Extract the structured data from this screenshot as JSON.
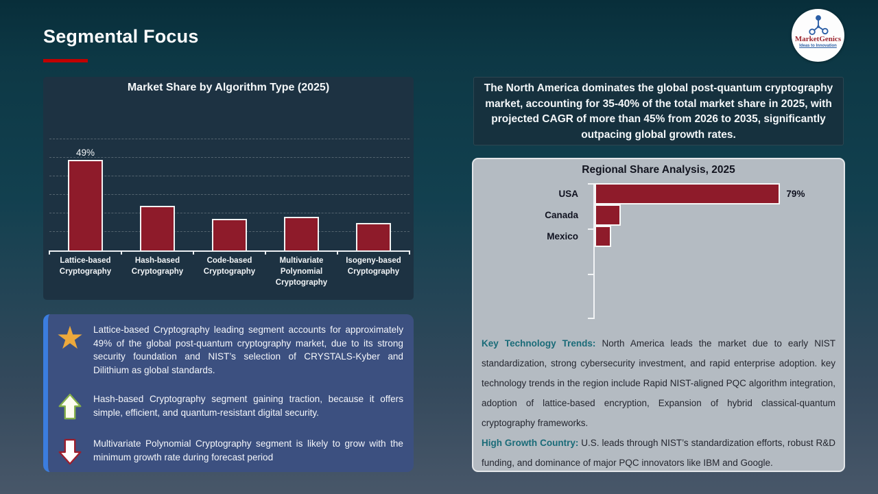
{
  "slide": {
    "title": "Segmental Focus",
    "logo": {
      "brand": "MarketGenics",
      "tagline": "Ideas to Innovation"
    }
  },
  "highlight_box": {
    "text": "The North America dominates the global post-quantum cryptography market, accounting for 35-40% of the total market share in 2025, with projected CAGR of more than 45% from 2026 to 2035, significantly outpacing global growth rates."
  },
  "chart_data": [
    {
      "type": "bar",
      "orientation": "vertical",
      "title": "Market Share by Algorithm Type (2025)",
      "categories": [
        "Lattice-based Cryptography",
        "Hash-based Cryptography",
        "Code-based Cryptography",
        "Multivariate Polynomial Cryptography",
        "Isogeny-based Cryptography"
      ],
      "values": [
        49,
        24,
        17,
        18,
        15
      ],
      "data_labels": [
        "49%",
        "",
        "",
        "",
        ""
      ],
      "ylim": [
        0,
        60
      ],
      "grid_step": 10,
      "grid": true,
      "legend": false,
      "bar_color": "#8e1b2a"
    },
    {
      "type": "bar",
      "orientation": "horizontal",
      "title": "Regional Share Analysis, 2025",
      "categories": [
        "USA",
        "Canada",
        "Mexico"
      ],
      "values": [
        79,
        11,
        7
      ],
      "data_labels": [
        "79%",
        "",
        ""
      ],
      "xlim": [
        0,
        104
      ],
      "grid": false,
      "legend": false,
      "bar_color": "#8e1b2a"
    }
  ],
  "regional_commentary": {
    "trends_label": "Key Technology Trends:",
    "trends_text": " North America leads the market due to early NIST standardization, strong cybersecurity investment, and rapid enterprise adoption. key technology trends in the region include Rapid NIST-aligned PQC algorithm integration, adoption of lattice-based encryption, Expansion of hybrid classical-quantum cryptography frameworks.",
    "growth_label": "High Growth Country:",
    "growth_text": " U.S. leads through NIST’s standardization efforts, robust R&D funding, and dominance of major PQC innovators like IBM and Google."
  },
  "insights": [
    {
      "icon": "star-icon",
      "glyph": "★",
      "text": "Lattice-based Cryptography leading segment accounts for approximately 49% of the global post-quantum cryptography market, due to its strong security foundation and NIST’s selection of CRYSTALS-Kyber and Dilithium as global standards."
    },
    {
      "icon": "arrow-up-icon",
      "text": "Hash-based Cryptography segment gaining traction, because it offers simple, efficient, and quantum-resistant digital security."
    },
    {
      "icon": "arrow-down-icon",
      "text": "Multivariate Polynomial Cryptography segment is likely to grow with the minimum growth rate during forecast period"
    }
  ],
  "colors": {
    "bar_red": "#8e1b2a",
    "accent_red": "#c00000",
    "panel_navy": "#1d3242",
    "panel_grey": "#b4bbc2",
    "insight_blue": "#3c5080",
    "stripe_blue": "#3b7dde",
    "star_gold": "#eda93c",
    "teal_label": "#1a6b78"
  }
}
